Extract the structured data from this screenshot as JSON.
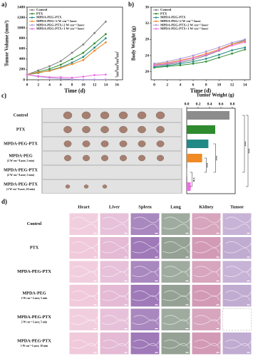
{
  "chart_data": [
    {
      "type": "line",
      "panel_label": "a)",
      "y_label": "Tumor Volume (mm³)",
      "x_label": "Time (d)",
      "x": [
        0,
        2,
        4,
        6,
        8,
        10,
        12,
        14
      ],
      "xlim": [
        0,
        17
      ],
      "xticks": [
        0,
        2,
        4,
        6,
        8,
        10,
        12,
        14,
        16
      ],
      "ylim": [
        0,
        1400
      ],
      "yticks": [
        0,
        200,
        400,
        600,
        800,
        1000,
        1200,
        1400
      ],
      "legend": "upper left",
      "series": [
        {
          "name": "Control",
          "color": "#7f7f7f",
          "values": [
            100,
            180,
            260,
            360,
            520,
            680,
            900,
            1120
          ]
        },
        {
          "name": "PTX",
          "color": "#2e8b2e",
          "values": [
            100,
            150,
            210,
            290,
            400,
            520,
            700,
            880
          ]
        },
        {
          "name": "MPDA-PEG-PTX",
          "color": "#218a86",
          "values": [
            100,
            130,
            180,
            240,
            330,
            440,
            620,
            800
          ]
        },
        {
          "name": "MPDA-PEG+2 W cm⁻² laser",
          "color": "#f08a24",
          "values": [
            100,
            140,
            170,
            230,
            300,
            380,
            560,
            720
          ]
        },
        {
          "name": "MPDA-PEG-PTX+2 W cm⁻² laser",
          "color": "#a898d8",
          "values": [
            100,
            60,
            40,
            20,
            10,
            5,
            5,
            5
          ]
        },
        {
          "name": "MPDA-PEG-PTX+1 W cm⁻² laser",
          "color": "#ee6ee0",
          "values": [
            100,
            70,
            50,
            50,
            40,
            60,
            90,
            100
          ]
        }
      ],
      "annotations": [
        "***",
        "***",
        "***",
        "***"
      ]
    },
    {
      "type": "line",
      "panel_label": "b)",
      "y_label": "Body Weight (g)",
      "x_label": "Time (d)",
      "x": [
        0,
        2,
        4,
        6,
        8,
        10,
        12,
        14
      ],
      "xlim": [
        -0.5,
        14.8
      ],
      "xticks": [
        0,
        2,
        4,
        6,
        8,
        10,
        12,
        14
      ],
      "ylim": [
        18,
        36
      ],
      "yticks": [
        20,
        24,
        28,
        32,
        36
      ],
      "legend": "upper left",
      "series": [
        {
          "name": "Control",
          "color": "#7f7f7f",
          "values": [
            21.5,
            21.8,
            22.3,
            23,
            24,
            25.2,
            26.8,
            27.8
          ]
        },
        {
          "name": "PTX",
          "color": "#2e8b2e",
          "values": [
            21,
            21.3,
            21.6,
            22,
            22.5,
            23.5,
            24.5,
            25.5
          ]
        },
        {
          "name": "MPDA-PEG-PTX",
          "color": "#218a86",
          "values": [
            21.2,
            21.5,
            22,
            22.5,
            23.2,
            24.2,
            25.3,
            26
          ]
        },
        {
          "name": "MPDA-PEG+2 W cm⁻² laser",
          "color": "#f08a24",
          "values": [
            21.8,
            22.2,
            22.8,
            23.5,
            24.5,
            25.5,
            26.8,
            27.5
          ]
        },
        {
          "name": "MPDA-PEG-PTX+2 W cm⁻² laser",
          "color": "#a898d8",
          "values": [
            22,
            22.5,
            23.2,
            24,
            25,
            26,
            27.2,
            28
          ]
        },
        {
          "name": "MPDA-PEG-PTX+1 W cm⁻² laser",
          "color": "#ee6ee0",
          "values": [
            21.6,
            22,
            22.6,
            23.4,
            24.2,
            25.3,
            26.5,
            27.3
          ]
        }
      ]
    },
    {
      "type": "barh",
      "panel_label": "c)",
      "x_label": "Tumor Weight (g)",
      "categories": [
        "Control",
        "PTX",
        "MPDA-PEG-PTX",
        "MPDA-PEG",
        "MPDA-PEG-PTX",
        "MPDA-PEG-PTX"
      ],
      "category_sublabels": [
        null,
        null,
        null,
        "(2 W cm⁻²Laser, 5 min)",
        "(2 W cm⁻²Laser, 5 min)",
        "(1 W cm⁻²Laser, 10 min)"
      ],
      "values": [
        0.75,
        0.5,
        0.38,
        0.27,
        0.02,
        0.07
      ],
      "colors": [
        "#8c8c8c",
        "#2e8b2e",
        "#218a86",
        "#f08a24",
        "#d8d8d8",
        "#ee6ee0"
      ],
      "xlim": [
        0,
        0.85
      ],
      "xticks": [
        {
          "value": 0,
          "label": "0.0"
        },
        0.2,
        0.4,
        0.6,
        0.8
      ],
      "annotations": [
        "***",
        "***",
        "***",
        "***",
        "n.s."
      ]
    }
  ],
  "histology": {
    "panel_label": "d)",
    "columns": [
      "Heart",
      "Liver",
      "Spleen",
      "Lung",
      "Kidney",
      "Tumor"
    ],
    "rows": [
      {
        "label": "Control",
        "sublabel": null
      },
      {
        "label": "PTX",
        "sublabel": null
      },
      {
        "label": "MPDA-PEG-PTX",
        "sublabel": null
      },
      {
        "label": "MPDA-PEG",
        "sublabel": "2 W cm⁻² Laser, 5 min"
      },
      {
        "label": "MPDA-PEG-PTX",
        "sublabel": "2 W cm⁻² Laser, 5 min"
      },
      {
        "label": "MPDA-PEG-PTX",
        "sublabel": "1 W cm⁻² Laser, 10 min"
      }
    ]
  }
}
